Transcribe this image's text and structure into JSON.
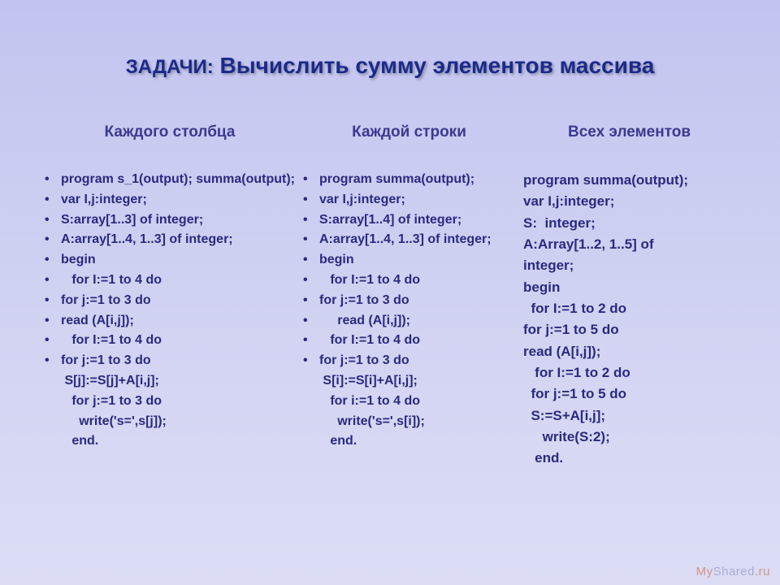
{
  "title_prefix": "ЗАДАЧИ:",
  "title_main": "Вычислить сумму элементов  массива",
  "columns": {
    "col1": {
      "header": "Каждого столбца",
      "lines": [
        {
          "b": true,
          "t": "program s_1(output); summa(output);"
        },
        {
          "b": true,
          "t": "var I,j:integer;"
        },
        {
          "b": true,
          "t": "S:array[1..3] of integer;"
        },
        {
          "b": true,
          "t": "A:array[1..4, 1..3] of integer;"
        },
        {
          "b": true,
          "t": "begin"
        },
        {
          "b": true,
          "t": "   for I:=1 to 4 do"
        },
        {
          "b": true,
          "t": "for j:=1 to 3 do"
        },
        {
          "b": true,
          "t": "read (A[i,j]);"
        },
        {
          "b": true,
          "t": "   for I:=1 to 4 do"
        },
        {
          "b": true,
          "t": "for j:=1 to 3 do"
        },
        {
          "b": false,
          "t": " S[j]:=S[j]+A[i,j];"
        },
        {
          "b": false,
          "t": "   for j:=1 to 3 do"
        },
        {
          "b": false,
          "t": "     write('s=',s[j]);"
        },
        {
          "b": false,
          "t": "   end."
        }
      ]
    },
    "col2": {
      "header": "Каждой строки",
      "lines": [
        {
          "b": true,
          "t": "program summa(output);"
        },
        {
          "b": true,
          "t": "var I,j:integer;"
        },
        {
          "b": true,
          "t": "S:array[1..4] of integer;"
        },
        {
          "b": true,
          "t": "A:array[1..4, 1..3] of integer;"
        },
        {
          "b": true,
          "t": "begin"
        },
        {
          "b": true,
          "t": "   for I:=1 to 4 do"
        },
        {
          "b": true,
          "t": "for j:=1 to 3 do"
        },
        {
          "b": true,
          "t": "     read (A[i,j]);"
        },
        {
          "b": true,
          "t": "   for I:=1 to 4 do"
        },
        {
          "b": true,
          "t": "for j:=1 to 3 do"
        },
        {
          "b": false,
          "t": " S[i]:=S[i]+A[i,j];"
        },
        {
          "b": false,
          "t": "   for i:=1 to 4 do"
        },
        {
          "b": false,
          "t": "     write('s=',s[i]);"
        },
        {
          "b": false,
          "t": "   end."
        }
      ]
    },
    "col3": {
      "header": "Всех элементов",
      "lines": [
        {
          "t": "program summa(output);"
        },
        {
          "t": "var I,j:integer;"
        },
        {
          "t": "S:  integer;"
        },
        {
          "t": "A:Array[1..2, 1..5] of"
        },
        {
          "t": "integer;"
        },
        {
          "t": "begin"
        },
        {
          "t": "  for I:=1 to 2 do"
        },
        {
          "t": "for j:=1 to 5 do"
        },
        {
          "t": "read (A[i,j]);"
        },
        {
          "t": "   for I:=1 to 2 do"
        },
        {
          "t": "  for j:=1 to 5 do"
        },
        {
          "t": "  S:=S+A[i,j];"
        },
        {
          "t": "     write(S:2);"
        },
        {
          "t": "   end."
        }
      ]
    }
  },
  "watermark": {
    "my": "My",
    "shared": "Shared",
    "ru": ".ru"
  },
  "colors": {
    "bg_top": "#c2c4f0",
    "bg_bottom": "#dcddf5",
    "title_color": "#1a2a8a",
    "text_color": "#2a2a7f",
    "header_color": "#3a3a8f"
  },
  "fonts": {
    "title_size": 28,
    "header_size": 19,
    "code_size": 16,
    "family": "Arial"
  }
}
